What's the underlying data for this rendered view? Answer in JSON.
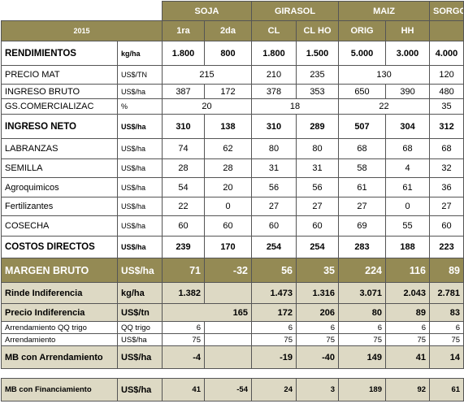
{
  "header": {
    "crops": [
      "SOJA",
      "GIRASOL",
      "MAIZ",
      "SORGO"
    ],
    "year": "2015",
    "subheaders": [
      "1ra",
      "2da",
      "CL",
      "CL HO",
      "ORIG",
      "HH"
    ]
  },
  "rows": [
    {
      "label": "RENDIMIENTOS",
      "unit": "kg/ha",
      "cells": [
        "1.800",
        "800",
        "1.800",
        "1.500",
        "5.000",
        "3.000",
        "4.000"
      ]
    },
    {
      "label": "PRECIO MAT",
      "unit": "US$/TN",
      "cells": [
        "215",
        "210",
        "235",
        "130",
        "120"
      ]
    },
    {
      "label": "INGRESO BRUTO",
      "unit": "US$/ha",
      "cells": [
        "387",
        "172",
        "378",
        "353",
        "650",
        "390",
        "480"
      ]
    },
    {
      "label": "GS.COMERCIALIZAC",
      "unit": "%",
      "cells": [
        "20",
        "18",
        "22",
        "35"
      ]
    },
    {
      "label": "INGRESO NETO",
      "unit": "US$/ha",
      "cells": [
        "310",
        "138",
        "310",
        "289",
        "507",
        "304",
        "312"
      ]
    },
    {
      "label": "LABRANZAS",
      "unit": "US$/ha",
      "cells": [
        "74",
        "62",
        "80",
        "80",
        "68",
        "68",
        "68"
      ]
    },
    {
      "label": "SEMILLA",
      "unit": "US$/ha",
      "cells": [
        "28",
        "28",
        "31",
        "31",
        "58",
        "4",
        "32"
      ]
    },
    {
      "label": "Agroquimicos",
      "unit": "US$/ha",
      "cells": [
        "54",
        "20",
        "56",
        "56",
        "61",
        "61",
        "36"
      ]
    },
    {
      "label": "Fertilizantes",
      "unit": "US$/ha",
      "cells": [
        "22",
        "0",
        "27",
        "27",
        "27",
        "0",
        "27"
      ]
    },
    {
      "label": "COSECHA",
      "unit": "US$/ha",
      "cells": [
        "60",
        "60",
        "60",
        "60",
        "69",
        "55",
        "60"
      ]
    },
    {
      "label": "COSTOS DIRECTOS",
      "unit": "US$/ha",
      "cells": [
        "239",
        "170",
        "254",
        "254",
        "283",
        "188",
        "223"
      ]
    },
    {
      "label": "MARGEN BRUTO",
      "unit": "US$/ha",
      "cells": [
        "71",
        "-32",
        "56",
        "35",
        "224",
        "116",
        "89"
      ]
    },
    {
      "label": "Rinde Indiferencia",
      "unit": "kg/ha",
      "cells": [
        "1.382",
        null,
        "1.473",
        "1.316",
        "3.071",
        "2.043",
        "2.781"
      ]
    },
    {
      "label": "Precio Indiferencia",
      "unit": "US$/tn",
      "cells": [
        "165",
        "172",
        "206",
        "80",
        "89",
        "83"
      ]
    },
    {
      "label": "Arrendamiento QQ trigo",
      "unit": "QQ trigo",
      "cells": [
        "6",
        null,
        "6",
        "6",
        "6",
        "6",
        "6"
      ]
    },
    {
      "label": "Arrendamiento",
      "unit": "US$/ha",
      "cells": [
        "75",
        null,
        "75",
        "75",
        "75",
        "75",
        "75"
      ]
    },
    {
      "label": "MB con Arrendamiento",
      "unit": "US$/ha",
      "cells": [
        "-4",
        null,
        "-19",
        "-40",
        "149",
        "41",
        "14"
      ]
    },
    {
      "label": "MB con Financiamiento",
      "unit": "US$/ha",
      "cells": [
        "41",
        "-54",
        "24",
        "3",
        "189",
        "92",
        "61"
      ]
    }
  ]
}
